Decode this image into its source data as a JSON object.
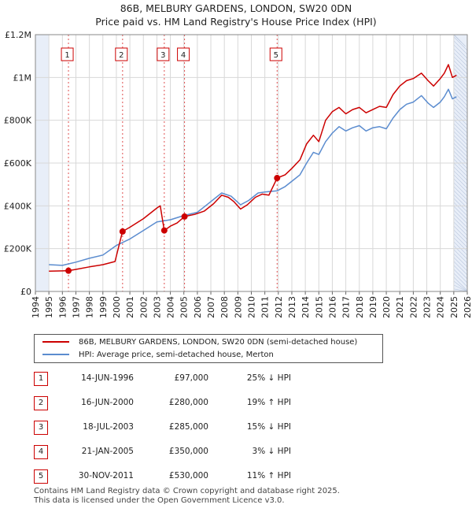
{
  "title": {
    "line1": "86B, MELBURY GARDENS, LONDON, SW20 0DN",
    "line2": "Price paid vs. HM Land Registry's House Price Index (HPI)"
  },
  "colors": {
    "price": "#cc0000",
    "hpi": "#5b8ccf",
    "shade": "#e8eef8",
    "marker_line": "#e05050"
  },
  "legend": {
    "price": "86B, MELBURY GARDENS, LONDON, SW20 0DN (semi-detached house)",
    "hpi": "HPI: Average price, semi-detached house, Merton"
  },
  "chart_data": {
    "type": "line",
    "x_axis": {
      "min": 1994,
      "max": 2026,
      "ticks": [
        "1994",
        "1995",
        "1996",
        "1997",
        "1998",
        "1999",
        "2000",
        "2001",
        "2002",
        "2003",
        "2004",
        "2005",
        "2006",
        "2007",
        "2008",
        "2009",
        "2010",
        "2011",
        "2012",
        "2013",
        "2014",
        "2015",
        "2016",
        "2017",
        "2018",
        "2019",
        "2020",
        "2021",
        "2022",
        "2023",
        "2024",
        "2025",
        "2026"
      ]
    },
    "y_axis": {
      "min": 0,
      "max": 1200000,
      "ticks": [
        {
          "v": 0,
          "label": "£0"
        },
        {
          "v": 200000,
          "label": "£200K"
        },
        {
          "v": 400000,
          "label": "£400K"
        },
        {
          "v": 600000,
          "label": "£600K"
        },
        {
          "v": 800000,
          "label": "£800K"
        },
        {
          "v": 1000000,
          "label": "£1M"
        },
        {
          "v": 1200000,
          "label": "£1.2M"
        }
      ]
    },
    "grid": true,
    "shaded_ranges": [
      [
        1994.0,
        1995.0
      ],
      [
        2025.0,
        2026.0
      ]
    ],
    "series": [
      {
        "name": "86B, MELBURY GARDENS, LONDON, SW20 0DN (semi-detached house)",
        "points": [
          [
            1995.0,
            95000
          ],
          [
            1996.0,
            96000
          ],
          [
            1996.45,
            97000
          ],
          [
            1997.0,
            103000
          ],
          [
            1998.0,
            115000
          ],
          [
            1999.0,
            125000
          ],
          [
            1999.9,
            140000
          ],
          [
            2000.45,
            280000
          ],
          [
            2001.0,
            300000
          ],
          [
            2002.0,
            340000
          ],
          [
            2003.0,
            390000
          ],
          [
            2003.25,
            400000
          ],
          [
            2003.55,
            285000
          ],
          [
            2004.0,
            305000
          ],
          [
            2004.5,
            320000
          ],
          [
            2005.05,
            350000
          ],
          [
            2005.8,
            360000
          ],
          [
            2006.5,
            375000
          ],
          [
            2007.2,
            410000
          ],
          [
            2007.8,
            450000
          ],
          [
            2008.3,
            440000
          ],
          [
            2008.7,
            420000
          ],
          [
            2009.2,
            385000
          ],
          [
            2009.7,
            405000
          ],
          [
            2010.3,
            440000
          ],
          [
            2010.8,
            455000
          ],
          [
            2011.3,
            450000
          ],
          [
            2011.91,
            530000
          ],
          [
            2012.5,
            545000
          ],
          [
            2013.0,
            575000
          ],
          [
            2013.6,
            615000
          ],
          [
            2014.1,
            690000
          ],
          [
            2014.6,
            730000
          ],
          [
            2015.0,
            700000
          ],
          [
            2015.5,
            800000
          ],
          [
            2016.0,
            840000
          ],
          [
            2016.5,
            860000
          ],
          [
            2017.0,
            830000
          ],
          [
            2017.5,
            850000
          ],
          [
            2018.0,
            860000
          ],
          [
            2018.5,
            835000
          ],
          [
            2019.0,
            850000
          ],
          [
            2019.5,
            865000
          ],
          [
            2020.0,
            860000
          ],
          [
            2020.5,
            920000
          ],
          [
            2021.0,
            960000
          ],
          [
            2021.5,
            985000
          ],
          [
            2022.0,
            995000
          ],
          [
            2022.6,
            1020000
          ],
          [
            2023.1,
            985000
          ],
          [
            2023.5,
            960000
          ],
          [
            2024.0,
            995000
          ],
          [
            2024.3,
            1020000
          ],
          [
            2024.6,
            1060000
          ],
          [
            2024.9,
            1000000
          ],
          [
            2025.2,
            1010000
          ]
        ]
      },
      {
        "name": "HPI: Average price, semi-detached house, Merton",
        "points": [
          [
            1995.0,
            125000
          ],
          [
            1996.0,
            122000
          ],
          [
            1997.0,
            137000
          ],
          [
            1998.0,
            155000
          ],
          [
            1999.0,
            170000
          ],
          [
            2000.0,
            215000
          ],
          [
            2001.0,
            245000
          ],
          [
            2002.0,
            285000
          ],
          [
            2003.0,
            325000
          ],
          [
            2004.0,
            335000
          ],
          [
            2005.0,
            355000
          ],
          [
            2006.0,
            370000
          ],
          [
            2007.0,
            420000
          ],
          [
            2007.8,
            460000
          ],
          [
            2008.5,
            445000
          ],
          [
            2009.2,
            405000
          ],
          [
            2009.8,
            425000
          ],
          [
            2010.5,
            460000
          ],
          [
            2011.0,
            465000
          ],
          [
            2011.9,
            470000
          ],
          [
            2012.5,
            490000
          ],
          [
            2013.0,
            515000
          ],
          [
            2013.6,
            545000
          ],
          [
            2014.1,
            600000
          ],
          [
            2014.6,
            650000
          ],
          [
            2015.0,
            640000
          ],
          [
            2015.5,
            700000
          ],
          [
            2016.0,
            740000
          ],
          [
            2016.5,
            770000
          ],
          [
            2017.0,
            750000
          ],
          [
            2017.5,
            765000
          ],
          [
            2018.0,
            775000
          ],
          [
            2018.5,
            750000
          ],
          [
            2019.0,
            765000
          ],
          [
            2019.5,
            770000
          ],
          [
            2020.0,
            760000
          ],
          [
            2020.5,
            810000
          ],
          [
            2021.0,
            850000
          ],
          [
            2021.5,
            875000
          ],
          [
            2022.0,
            885000
          ],
          [
            2022.6,
            915000
          ],
          [
            2023.1,
            880000
          ],
          [
            2023.5,
            860000
          ],
          [
            2024.0,
            885000
          ],
          [
            2024.3,
            910000
          ],
          [
            2024.6,
            945000
          ],
          [
            2024.9,
            900000
          ],
          [
            2025.2,
            910000
          ]
        ]
      }
    ],
    "sales": [
      {
        "n": "1",
        "x": 1996.45,
        "y": 97000
      },
      {
        "n": "2",
        "x": 2000.46,
        "y": 280000
      },
      {
        "n": "3",
        "x": 2003.55,
        "y": 285000
      },
      {
        "n": "4",
        "x": 2005.05,
        "y": 350000
      },
      {
        "n": "5",
        "x": 2011.91,
        "y": 530000
      }
    ]
  },
  "transactions": [
    {
      "n": "1",
      "date": "14-JUN-1996",
      "price": "£97,000",
      "hpi": "25% ↓ HPI"
    },
    {
      "n": "2",
      "date": "16-JUN-2000",
      "price": "£280,000",
      "hpi": "19% ↑ HPI"
    },
    {
      "n": "3",
      "date": "18-JUL-2003",
      "price": "£285,000",
      "hpi": "15% ↓ HPI"
    },
    {
      "n": "4",
      "date": "21-JAN-2005",
      "price": "£350,000",
      "hpi": "3% ↓ HPI"
    },
    {
      "n": "5",
      "date": "30-NOV-2011",
      "price": "£530,000",
      "hpi": "11% ↑ HPI"
    }
  ],
  "footer": {
    "line1": "Contains HM Land Registry data © Crown copyright and database right 2025.",
    "line2": "This data is licensed under the Open Government Licence v3.0."
  }
}
